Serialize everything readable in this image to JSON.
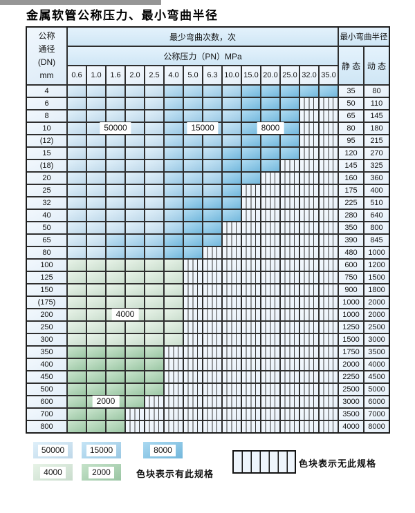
{
  "page": {
    "title": "金属软管公称压力、最小弯曲半径"
  },
  "table": {
    "dn_header_lines": [
      "公称",
      "通径",
      "(DN)",
      "mm"
    ],
    "cycles_header": "最少弯曲次数，次",
    "pressure_header": "公称压力（PN）MPa",
    "radius_header": "最小弯曲半径",
    "static_header": "静 态",
    "dynamic_header": "动 态",
    "pressure_columns": [
      "0.6",
      "1.0",
      "1.6",
      "2.0",
      "2.5",
      "4.0",
      "5.0",
      "6.3",
      "10.0",
      "15.0",
      "20.0",
      "25.0",
      "32.0",
      "35.0"
    ],
    "rows": [
      {
        "dn": "4",
        "static": "35",
        "dynamic": "80",
        "bands": "b50:5,b15:4,b8:5"
      },
      {
        "dn": "6",
        "static": "50",
        "dynamic": "110",
        "bands": "b50:5,b15:4,b8:3,x:2"
      },
      {
        "dn": "8",
        "static": "65",
        "dynamic": "145",
        "bands": "b50:5,b15:4,b8:3,x:2"
      },
      {
        "dn": "10",
        "static": "80",
        "dynamic": "180",
        "bands": "b50:5,b15:4,b8:3,x:2"
      },
      {
        "dn": "(12)",
        "static": "95",
        "dynamic": "215",
        "bands": "b50:5,b15:4,b8:3,x:2"
      },
      {
        "dn": "15",
        "static": "120",
        "dynamic": "270",
        "bands": "b50:5,b15:3,b8:4,x:2"
      },
      {
        "dn": "(18)",
        "static": "145",
        "dynamic": "325",
        "bands": "b50:5,b15:3,b8:3,x:3"
      },
      {
        "dn": "20",
        "static": "160",
        "dynamic": "360",
        "bands": "b50:5,b15:3,b8:2,x:4"
      },
      {
        "dn": "25",
        "static": "175",
        "dynamic": "400",
        "bands": "b50:5,b15:3,b8:1,x:5"
      },
      {
        "dn": "32",
        "static": "225",
        "dynamic": "510",
        "bands": "b50:5,b15:1,b8:3,x:5"
      },
      {
        "dn": "40",
        "static": "280",
        "dynamic": "640",
        "bands": "b50:5,b15:1,b8:3,x:5"
      },
      {
        "dn": "50",
        "static": "350",
        "dynamic": "800",
        "bands": "b50:5,b15:1,b8:2,x:6"
      },
      {
        "dn": "65",
        "static": "390",
        "dynamic": "845",
        "bands": "b50:2,b15:3,b8:3,x:6"
      },
      {
        "dn": "80",
        "static": "480",
        "dynamic": "1000",
        "bands": "b50:2,b15:3,b8:2,x:7"
      },
      {
        "dn": "100",
        "static": "600",
        "dynamic": "1200",
        "bands": "g4:6,x:8"
      },
      {
        "dn": "125",
        "static": "750",
        "dynamic": "1500",
        "bands": "g4:6,x:8"
      },
      {
        "dn": "150",
        "static": "900",
        "dynamic": "1800",
        "bands": "g4:6,x:8"
      },
      {
        "dn": "(175)",
        "static": "1000",
        "dynamic": "2000",
        "bands": "g4:6,x:8"
      },
      {
        "dn": "200",
        "static": "1000",
        "dynamic": "2000",
        "bands": "g4:6,x:8"
      },
      {
        "dn": "250",
        "static": "1250",
        "dynamic": "2500",
        "bands": "g4:6,x:8"
      },
      {
        "dn": "300",
        "static": "1500",
        "dynamic": "3000",
        "bands": "g4:6,x:8"
      },
      {
        "dn": "350",
        "static": "1750",
        "dynamic": "3500",
        "bands": "g2:5,x:9"
      },
      {
        "dn": "400",
        "static": "2000",
        "dynamic": "4000",
        "bands": "g2:5,x:9"
      },
      {
        "dn": "450",
        "static": "2250",
        "dynamic": "4500",
        "bands": "g2:5,x:9"
      },
      {
        "dn": "500",
        "static": "2500",
        "dynamic": "5000",
        "bands": "g2:5,x:9"
      },
      {
        "dn": "600",
        "static": "3000",
        "dynamic": "6000",
        "bands": "g2:4,x:10"
      },
      {
        "dn": "700",
        "static": "3500",
        "dynamic": "7000",
        "bands": "g2:3,x:11"
      },
      {
        "dn": "800",
        "static": "4000",
        "dynamic": "8000",
        "bands": "g2:3,x:11"
      }
    ],
    "overlay_labels": [
      {
        "text": "50000",
        "row": 3,
        "col_start": 2,
        "col_end": 4
      },
      {
        "text": "15000",
        "row": 3,
        "col_start": 7,
        "col_end": 8
      },
      {
        "text": "8000",
        "row": 3,
        "col_start": 10,
        "col_end": 12
      },
      {
        "text": "4000",
        "row": 18,
        "col_start": 3,
        "col_end": 4
      },
      {
        "text": "2000",
        "row": 25,
        "col_start": 2,
        "col_end": 3
      }
    ]
  },
  "legend": {
    "items": [
      {
        "label": "50000",
        "color_key": "b50"
      },
      {
        "label": "15000",
        "color_key": "b15"
      },
      {
        "label": "8000",
        "color_key": "b8"
      },
      {
        "label": "4000",
        "color_key": "g4"
      },
      {
        "label": "2000",
        "color_key": "g2"
      }
    ],
    "available_text": "色块表示有此规格",
    "unavailable_text": "色块表示无此规格"
  },
  "colors": {
    "b50": "#cde7f7",
    "b15": "#a6d6f1",
    "b8": "#7cc4e9",
    "g4": "#d9ecd9",
    "g2": "#a6d3ac",
    "stripe_line": "#3a3a3a",
    "grid_line": "#2e2e2e"
  }
}
